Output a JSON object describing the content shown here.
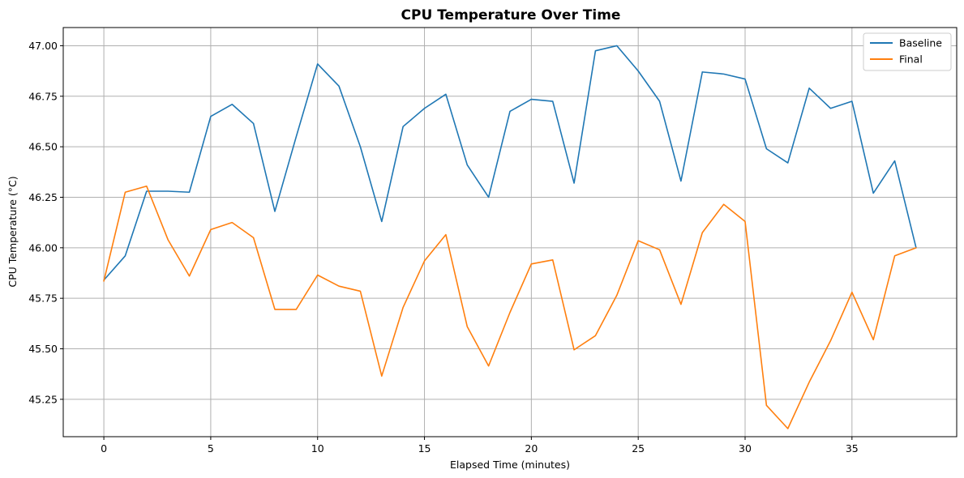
{
  "chart_data": {
    "type": "line",
    "title": "CPU Temperature Over Time",
    "xlabel": "Elapsed Time (minutes)",
    "ylabel": "CPU Temperature (°C)",
    "xlim": [
      -1.9,
      39.9
    ],
    "ylim": [
      45.065,
      47.09
    ],
    "xticks": [
      0,
      5,
      10,
      15,
      20,
      25,
      30,
      35
    ],
    "yticks": [
      45.25,
      45.5,
      45.75,
      46.0,
      46.25,
      46.5,
      46.75,
      47.0
    ],
    "ytick_labels": [
      "45.25",
      "45.50",
      "45.75",
      "46.00",
      "46.25",
      "46.50",
      "46.75",
      "47.00"
    ],
    "grid": true,
    "legend_position": "top-right",
    "x": [
      0,
      1,
      2,
      3,
      4,
      5,
      6,
      7,
      8,
      9,
      10,
      11,
      12,
      13,
      14,
      15,
      16,
      17,
      18,
      19,
      20,
      21,
      22,
      23,
      24,
      25,
      26,
      27,
      28,
      29,
      30,
      31,
      32,
      33,
      34,
      35,
      36,
      37,
      38
    ],
    "series": [
      {
        "name": "Baseline",
        "color": "#1f77b4",
        "values": [
          45.84,
          45.96,
          46.28,
          46.28,
          46.275,
          46.65,
          46.71,
          46.615,
          46.18,
          46.55,
          46.91,
          46.8,
          46.5,
          46.13,
          46.6,
          46.69,
          46.76,
          46.41,
          46.25,
          46.675,
          46.735,
          46.725,
          46.32,
          46.975,
          47.0,
          46.875,
          46.725,
          46.33,
          46.87,
          46.86,
          46.835,
          46.49,
          46.42,
          46.79,
          46.69,
          46.725,
          46.27,
          46.43,
          46.0
        ]
      },
      {
        "name": "Final",
        "color": "#ff7f0e",
        "values": [
          45.835,
          46.275,
          46.305,
          46.04,
          45.86,
          46.09,
          46.125,
          46.05,
          45.695,
          45.695,
          45.865,
          45.81,
          45.785,
          45.365,
          45.705,
          45.935,
          46.065,
          45.61,
          45.415,
          45.68,
          45.92,
          45.94,
          45.495,
          45.565,
          45.765,
          46.035,
          45.99,
          45.72,
          46.075,
          46.215,
          46.13,
          45.22,
          45.105,
          45.335,
          45.54,
          45.78,
          45.545,
          45.96,
          46.0
        ]
      }
    ]
  }
}
